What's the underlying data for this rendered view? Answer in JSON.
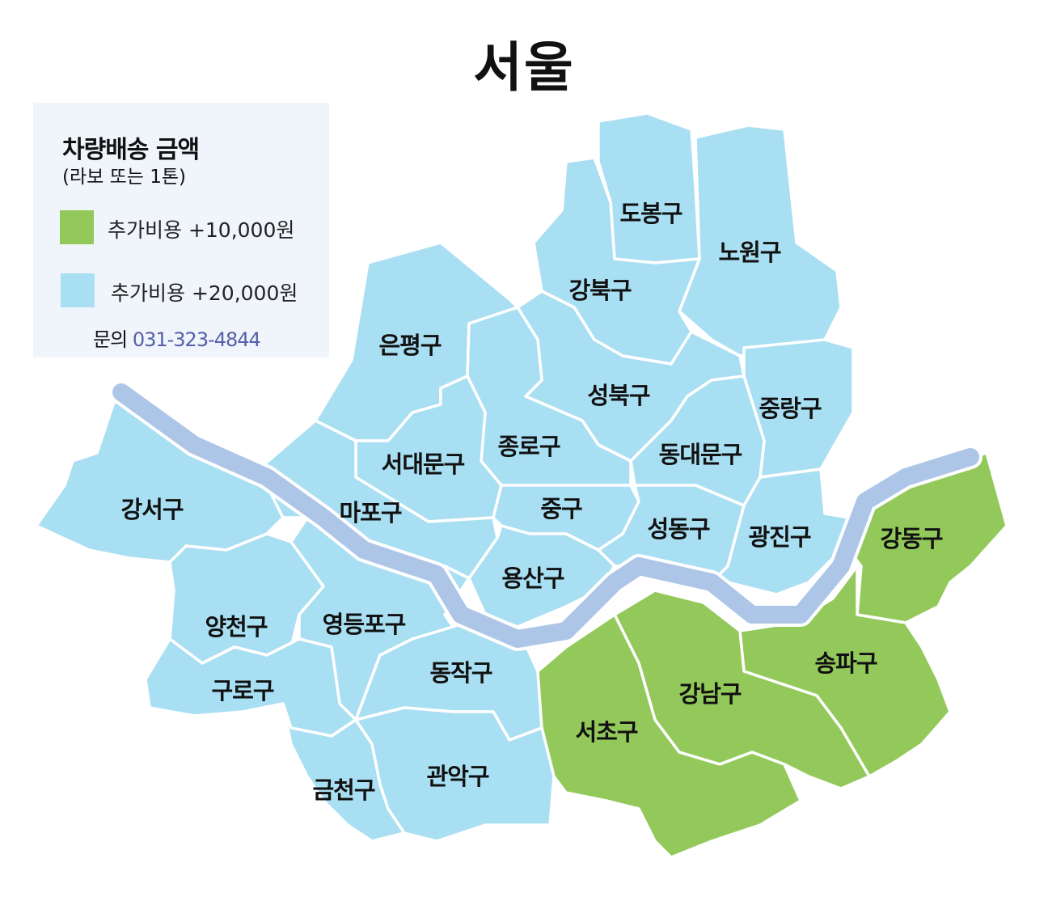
{
  "title": "서울",
  "colors": {
    "tier1": "#93c95a",
    "tier2": "#a9dff2",
    "river": "#adc6e8",
    "legend_bg": "#f0f4fb",
    "phone": "#5560a8"
  },
  "legend": {
    "title": "차량배송 금액",
    "subtitle": "(라보 또는 1톤)",
    "items": [
      {
        "label": "추가비용 +10,000원",
        "color": "#93c95a"
      },
      {
        "label": "추가비용 +20,000원",
        "color": "#a9dff2"
      }
    ],
    "contact_label": "문의",
    "phone": "031-323-4844"
  },
  "districts": [
    {
      "name": "도봉구",
      "tier": 2
    },
    {
      "name": "노원구",
      "tier": 2
    },
    {
      "name": "강북구",
      "tier": 2
    },
    {
      "name": "은평구",
      "tier": 2
    },
    {
      "name": "성북구",
      "tier": 2
    },
    {
      "name": "중랑구",
      "tier": 2
    },
    {
      "name": "종로구",
      "tier": 2
    },
    {
      "name": "동대문구",
      "tier": 2
    },
    {
      "name": "서대문구",
      "tier": 2
    },
    {
      "name": "강서구",
      "tier": 2
    },
    {
      "name": "마포구",
      "tier": 2
    },
    {
      "name": "중구",
      "tier": 2
    },
    {
      "name": "성동구",
      "tier": 2
    },
    {
      "name": "광진구",
      "tier": 2
    },
    {
      "name": "강동구",
      "tier": 1
    },
    {
      "name": "용산구",
      "tier": 2
    },
    {
      "name": "양천구",
      "tier": 2
    },
    {
      "name": "영등포구",
      "tier": 2
    },
    {
      "name": "송파구",
      "tier": 1
    },
    {
      "name": "동작구",
      "tier": 2
    },
    {
      "name": "구로구",
      "tier": 2
    },
    {
      "name": "강남구",
      "tier": 1
    },
    {
      "name": "서초구",
      "tier": 1
    },
    {
      "name": "금천구",
      "tier": 2
    },
    {
      "name": "관악구",
      "tier": 2
    }
  ]
}
